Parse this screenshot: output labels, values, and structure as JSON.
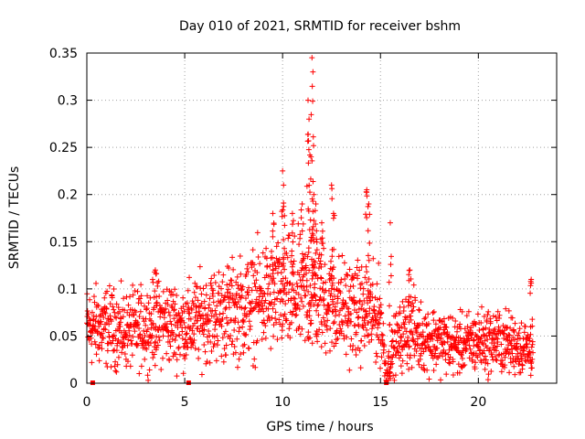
{
  "chart_data": {
    "type": "scatter",
    "title": "Day 010 of 2021, SRMTID for receiver bshm",
    "xlabel": "GPS time / hours",
    "ylabel": "SRMTID / TECUs",
    "xlim": [
      0,
      24
    ],
    "ylim": [
      0,
      0.35
    ],
    "xticks": [
      0,
      5,
      10,
      15,
      20
    ],
    "yticks": [
      0,
      0.05,
      0.1,
      0.15,
      0.2,
      0.25,
      0.3,
      0.35
    ],
    "grid": true,
    "marker": "+",
    "color": "#ff0000",
    "series": [
      {
        "name": "SRMTID",
        "trend": [
          [
            0.0,
            0.06
          ],
          [
            1.0,
            0.06
          ],
          [
            2.0,
            0.055
          ],
          [
            3.0,
            0.06
          ],
          [
            4.0,
            0.065
          ],
          [
            5.0,
            0.06
          ],
          [
            6.0,
            0.07
          ],
          [
            7.0,
            0.075
          ],
          [
            8.0,
            0.08
          ],
          [
            9.0,
            0.09
          ],
          [
            10.0,
            0.09
          ],
          [
            11.0,
            0.095
          ],
          [
            12.0,
            0.09
          ],
          [
            13.0,
            0.08
          ],
          [
            14.0,
            0.075
          ],
          [
            15.0,
            0.07
          ],
          [
            15.3,
            0.01
          ],
          [
            15.7,
            0.04
          ],
          [
            16.5,
            0.06
          ],
          [
            17.0,
            0.05
          ],
          [
            18.0,
            0.045
          ],
          [
            19.0,
            0.04
          ],
          [
            20.0,
            0.045
          ],
          [
            21.0,
            0.045
          ],
          [
            22.0,
            0.04
          ],
          [
            22.8,
            0.035
          ]
        ],
        "spikes": [
          [
            9.5,
            0.18
          ],
          [
            10.0,
            0.225
          ],
          [
            10.05,
            0.21
          ],
          [
            10.5,
            0.18
          ],
          [
            11.0,
            0.19
          ],
          [
            11.3,
            0.3
          ],
          [
            11.35,
            0.28
          ],
          [
            11.5,
            0.345
          ],
          [
            11.55,
            0.33
          ],
          [
            11.45,
            0.24
          ],
          [
            11.6,
            0.2
          ],
          [
            11.7,
            0.19
          ],
          [
            12.0,
            0.17
          ],
          [
            12.5,
            0.21
          ],
          [
            12.6,
            0.18
          ],
          [
            14.3,
            0.205
          ],
          [
            14.4,
            0.19
          ],
          [
            15.5,
            0.17
          ],
          [
            3.5,
            0.12
          ],
          [
            16.5,
            0.12
          ],
          [
            22.7,
            0.11
          ]
        ],
        "zero_markers": [
          0.3,
          5.2,
          15.3
        ]
      }
    ]
  }
}
